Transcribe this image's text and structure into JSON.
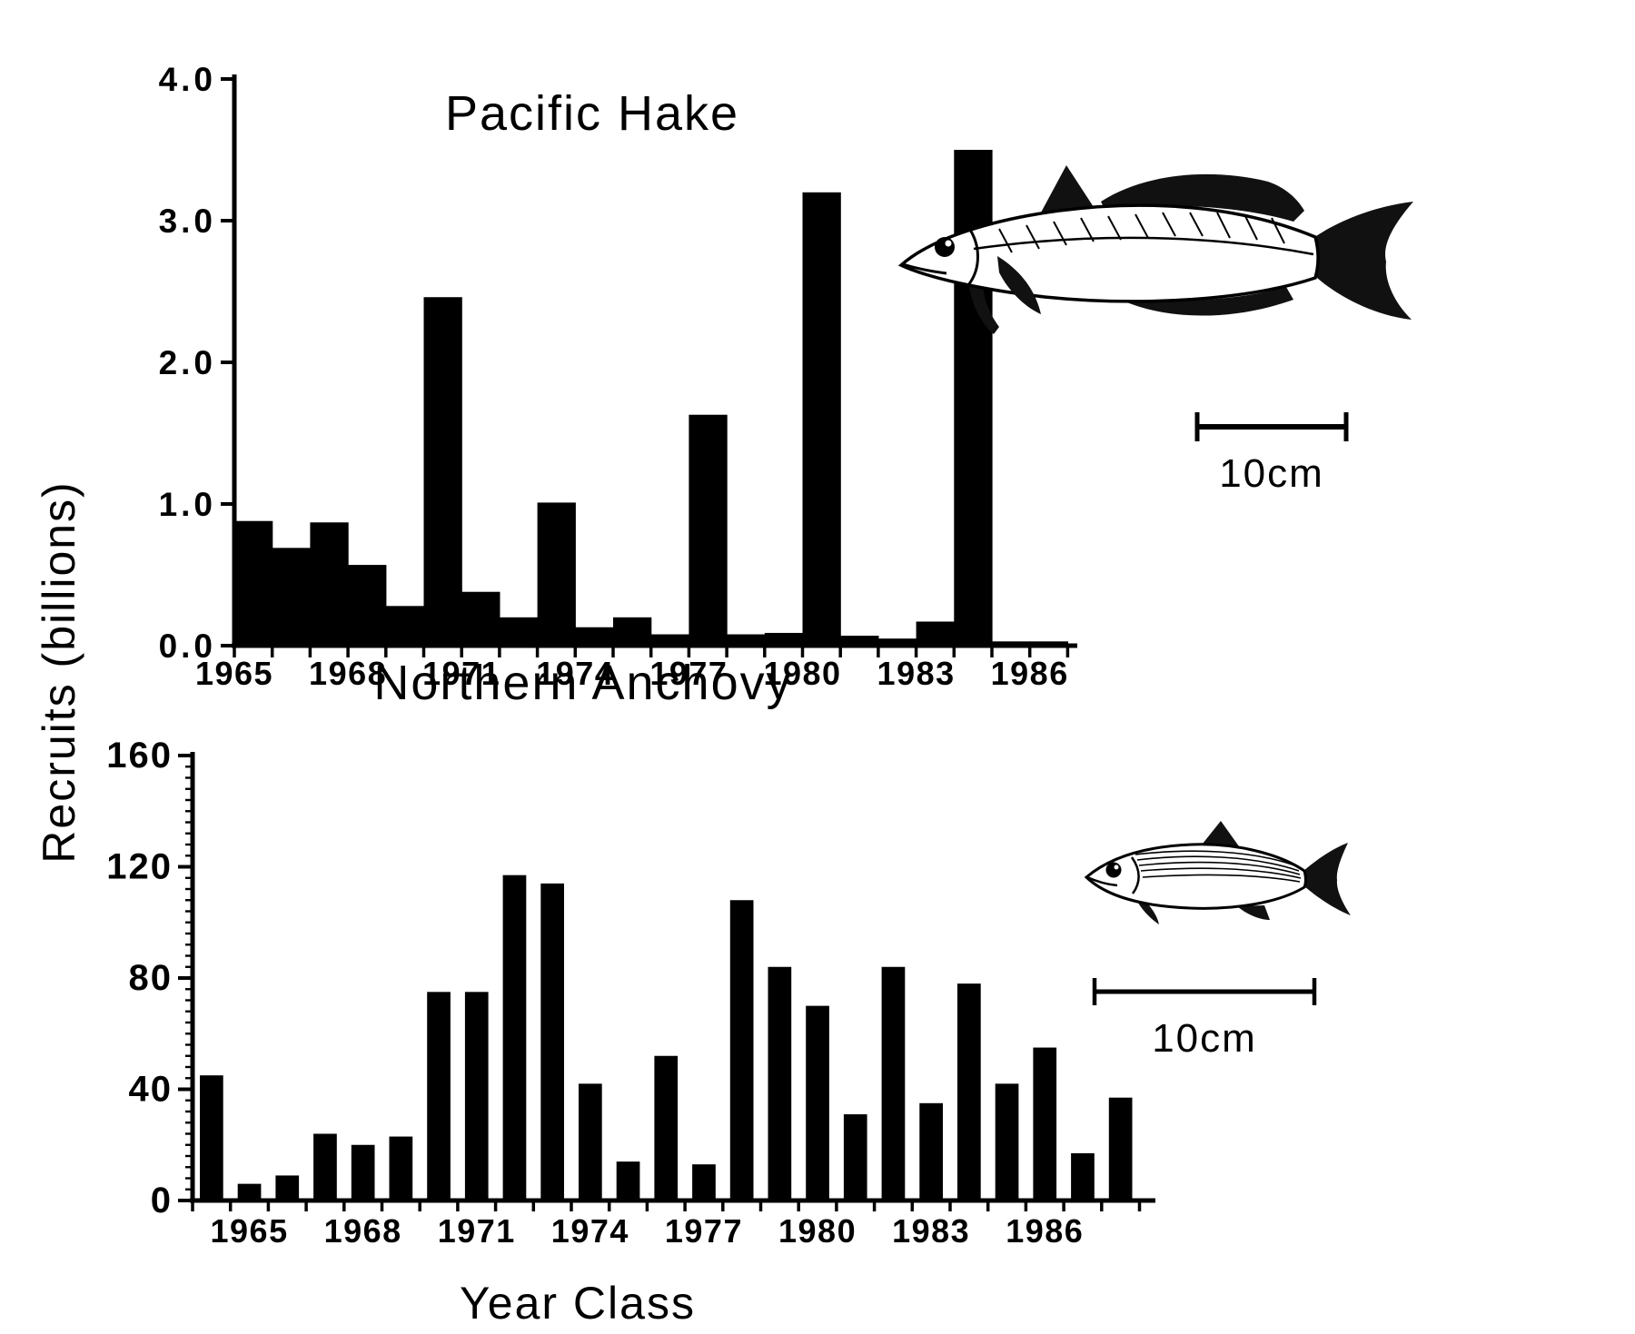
{
  "figure": {
    "ylabel": "Recruits (billions)",
    "xlabel": "Year Class",
    "background": "#ffffff",
    "ink": "#000000"
  },
  "chart_data": [
    {
      "type": "bar",
      "style": "histogram-contiguous",
      "title": "Pacific Hake",
      "unit": "billions of recruits",
      "categories": [
        1965,
        1966,
        1967,
        1968,
        1969,
        1970,
        1971,
        1972,
        1973,
        1974,
        1975,
        1976,
        1977,
        1978,
        1979,
        1980,
        1981,
        1982,
        1983,
        1984,
        1985,
        1986
      ],
      "values": [
        0.88,
        0.69,
        0.87,
        0.57,
        0.28,
        2.46,
        0.38,
        0.2,
        1.01,
        0.13,
        0.2,
        0.08,
        1.63,
        0.08,
        0.09,
        3.2,
        0.07,
        0.05,
        0.17,
        3.5,
        0.03,
        0.03
      ],
      "ylim": [
        0,
        4.0
      ],
      "yticks": [
        {
          "value": 0,
          "label": "0.0"
        },
        {
          "value": 1,
          "label": "1.0"
        },
        {
          "value": 2,
          "label": "2.0"
        },
        {
          "value": 3,
          "label": "3.0"
        },
        {
          "value": 4,
          "label": "4.0"
        }
      ],
      "xtick_labels": [
        "1965",
        "1968",
        "1971",
        "1974",
        "1977",
        "1980",
        "1983",
        "1986"
      ],
      "grid": false,
      "legend": null,
      "scale_bar_label": "10cm"
    },
    {
      "type": "bar",
      "style": "separated-bars",
      "title": "Northern Anchovy",
      "unit": "recruits",
      "categories": [
        1964,
        1965,
        1966,
        1967,
        1968,
        1969,
        1970,
        1971,
        1972,
        1973,
        1974,
        1975,
        1976,
        1977,
        1978,
        1979,
        1980,
        1981,
        1982,
        1983,
        1984,
        1985,
        1986,
        1987,
        1988
      ],
      "values": [
        45,
        6,
        9,
        24,
        20,
        23,
        75,
        75,
        117,
        114,
        42,
        14,
        52,
        13,
        108,
        84,
        70,
        31,
        84,
        35,
        78,
        42,
        55,
        17,
        37
      ],
      "ylim": [
        0,
        160
      ],
      "yticks": [
        {
          "value": 0,
          "label": "0"
        },
        {
          "value": 40,
          "label": "40"
        },
        {
          "value": 80,
          "label": "80"
        },
        {
          "value": 120,
          "label": "120"
        },
        {
          "value": 160,
          "label": "160"
        }
      ],
      "xtick_labels": [
        "1965",
        "1968",
        "1971",
        "1974",
        "1977",
        "1980",
        "1983",
        "1986"
      ],
      "grid": false,
      "legend": null,
      "scale_bar_label": "10cm"
    }
  ]
}
